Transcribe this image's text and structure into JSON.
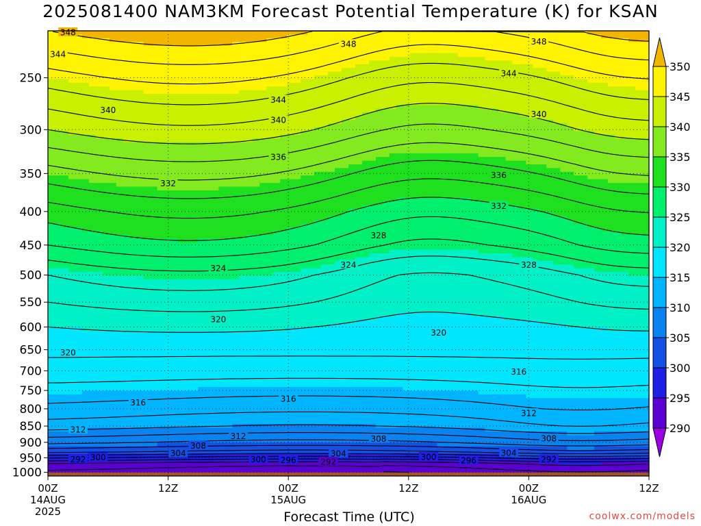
{
  "title": "2025081400 NAM3KM Forecast Potential Temperature (K) for KSAN",
  "credit": "coolwx.com/models",
  "chart_data": {
    "type": "heatmap",
    "title": "2025081400 NAM3KM Forecast Potential Temperature (K) for KSAN",
    "xlabel": "Forecast Time (UTC)",
    "ylabel": "",
    "x_range_hours": [
      0,
      60
    ],
    "y_axis": "pressure (hPa), inverted, log scale",
    "x_ticks": [
      {
        "hour": 0,
        "lines": [
          "00Z",
          "14AUG",
          "2025"
        ]
      },
      {
        "hour": 12,
        "lines": [
          "12Z"
        ]
      },
      {
        "hour": 24,
        "lines": [
          "00Z",
          "15AUG"
        ]
      },
      {
        "hour": 36,
        "lines": [
          "12Z"
        ]
      },
      {
        "hour": 48,
        "lines": [
          "00Z",
          "16AUG"
        ]
      },
      {
        "hour": 60,
        "lines": [
          "12Z"
        ]
      }
    ],
    "y_ticks": [
      250,
      300,
      350,
      400,
      450,
      500,
      550,
      600,
      650,
      700,
      750,
      800,
      850,
      900,
      950,
      1000
    ],
    "y_tick_labels": [
      "250",
      "300",
      "350",
      "400",
      "450",
      "500",
      "550",
      "600",
      "650",
      "700",
      "750",
      "800",
      "850",
      "900",
      "950",
      "1000"
    ],
    "colorbar": {
      "levels": [
        350,
        345,
        340,
        335,
        330,
        325,
        320,
        315,
        310,
        305,
        300,
        295,
        290
      ],
      "labels": [
        "350",
        "345",
        "340",
        "335",
        "330",
        "325",
        "320",
        "315",
        "310",
        "305",
        "300",
        "295",
        "290"
      ],
      "colors": [
        "#f2b500",
        "#fff300",
        "#c8f000",
        "#82ea1e",
        "#1ee01e",
        "#00f06e",
        "#00f0c8",
        "#00e6ff",
        "#00b4ff",
        "#0a82f0",
        "#1450e6",
        "#1e1ee6",
        "#5a00d2",
        "#9a00e0"
      ]
    },
    "contour_levels": [
      292,
      296,
      300,
      304,
      308,
      312,
      316,
      320,
      324,
      328,
      332,
      336,
      340,
      344,
      348
    ],
    "contour_labels": [
      {
        "text": "348",
        "hour": 2,
        "pres": 213
      },
      {
        "text": "344",
        "hour": 1,
        "pres": 230
      },
      {
        "text": "348",
        "hour": 30,
        "pres": 222
      },
      {
        "text": "348",
        "hour": 49,
        "pres": 220
      },
      {
        "text": "344",
        "hour": 46,
        "pres": 246
      },
      {
        "text": "340",
        "hour": 6,
        "pres": 280
      },
      {
        "text": "344",
        "hour": 23,
        "pres": 270
      },
      {
        "text": "340",
        "hour": 23,
        "pres": 290
      },
      {
        "text": "340",
        "hour": 49,
        "pres": 284
      },
      {
        "text": "336",
        "hour": 23,
        "pres": 330
      },
      {
        "text": "336",
        "hour": 45,
        "pres": 352
      },
      {
        "text": "332",
        "hour": 12,
        "pres": 362
      },
      {
        "text": "332",
        "hour": 45,
        "pres": 392
      },
      {
        "text": "328",
        "hour": 33,
        "pres": 435
      },
      {
        "text": "328",
        "hour": 48,
        "pres": 482
      },
      {
        "text": "324",
        "hour": 17,
        "pres": 488
      },
      {
        "text": "324",
        "hour": 30,
        "pres": 482
      },
      {
        "text": "320",
        "hour": 17,
        "pres": 584
      },
      {
        "text": "320",
        "hour": 39,
        "pres": 612
      },
      {
        "text": "320",
        "hour": 2,
        "pres": 656
      },
      {
        "text": "316",
        "hour": 47,
        "pres": 702
      },
      {
        "text": "316",
        "hour": 24,
        "pres": 772
      },
      {
        "text": "316",
        "hour": 9,
        "pres": 782
      },
      {
        "text": "312",
        "hour": 48,
        "pres": 812
      },
      {
        "text": "312",
        "hour": 3,
        "pres": 860
      },
      {
        "text": "312",
        "hour": 19,
        "pres": 880
      },
      {
        "text": "308",
        "hour": 33,
        "pres": 888
      },
      {
        "text": "308",
        "hour": 50,
        "pres": 887
      },
      {
        "text": "308",
        "hour": 15,
        "pres": 910
      },
      {
        "text": "304",
        "hour": 13,
        "pres": 935
      },
      {
        "text": "304",
        "hour": 29,
        "pres": 936
      },
      {
        "text": "304",
        "hour": 46,
        "pres": 933
      },
      {
        "text": "300",
        "hour": 5,
        "pres": 948
      },
      {
        "text": "300",
        "hour": 21,
        "pres": 955
      },
      {
        "text": "300",
        "hour": 38,
        "pres": 947
      },
      {
        "text": "296",
        "hour": 24,
        "pres": 957
      },
      {
        "text": "296",
        "hour": 42,
        "pres": 958
      },
      {
        "text": "292",
        "hour": 3,
        "pres": 955
      },
      {
        "text": "292",
        "hour": 28,
        "pres": 963
      },
      {
        "text": "292",
        "hour": 50,
        "pres": 955
      }
    ],
    "field_levels": [
      {
        "pres": 212,
        "theta": 350
      },
      {
        "pres": 250,
        "theta": 345
      },
      {
        "pres": 300,
        "theta": 340
      },
      {
        "pres": 340,
        "theta": 336
      },
      {
        "pres": 400,
        "theta": 331
      },
      {
        "pres": 450,
        "theta": 328
      },
      {
        "pres": 500,
        "theta": 324
      },
      {
        "pres": 550,
        "theta": 322
      },
      {
        "pres": 600,
        "theta": 320
      },
      {
        "pres": 650,
        "theta": 318.5
      },
      {
        "pres": 700,
        "theta": 317
      },
      {
        "pres": 750,
        "theta": 315
      },
      {
        "pres": 800,
        "theta": 313
      },
      {
        "pres": 850,
        "theta": 310.5
      },
      {
        "pres": 900,
        "theta": 306
      },
      {
        "pres": 930,
        "theta": 302
      },
      {
        "pres": 950,
        "theta": 298
      },
      {
        "pres": 970,
        "theta": 294
      },
      {
        "pres": 1000,
        "theta": 292
      }
    ],
    "surface_pres": 1013,
    "grid": true,
    "legend_placement": "right colorbar"
  }
}
